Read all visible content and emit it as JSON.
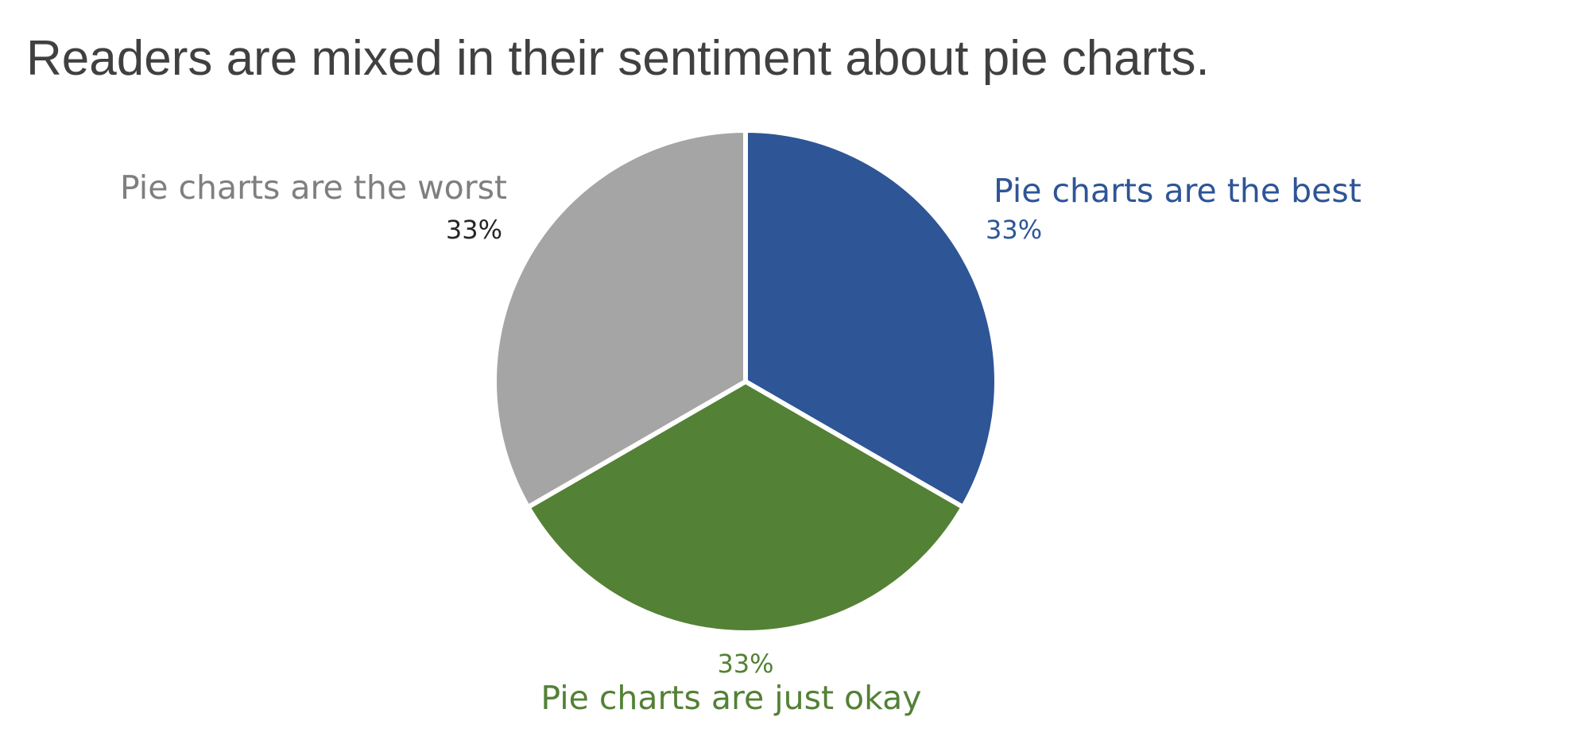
{
  "chart_data": {
    "type": "pie",
    "title": "Readers are mixed in their sentiment about pie charts.",
    "slices": [
      {
        "label": "Pie charts are the best",
        "value": 33,
        "value_label": "33%",
        "color": "#2E5596",
        "value_color": "#2E5596"
      },
      {
        "label": "Pie charts are just okay",
        "value": 33,
        "value_label": "33%",
        "color": "#538135",
        "value_color": "#538135"
      },
      {
        "label": "Pie charts are the worst",
        "value": 33,
        "value_label": "33%",
        "color": "#A5A5A5",
        "label_color": "#7F7F7F",
        "value_color": "#262626"
      }
    ],
    "start": "top",
    "direction": "clockwise",
    "legend": "none"
  }
}
